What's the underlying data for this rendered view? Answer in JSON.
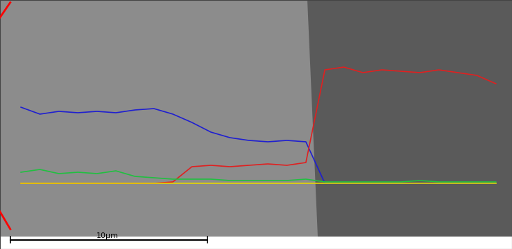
{
  "chart_data": {
    "type": "line",
    "x": [
      0,
      4,
      8,
      12,
      16,
      20,
      24,
      28,
      32,
      36,
      40,
      44,
      48,
      52,
      56,
      60,
      64,
      68,
      72,
      76,
      80,
      84,
      88,
      92,
      96,
      100
    ],
    "series": [
      {
        "color": "#1f1fd0",
        "values": [
          55,
          50,
          52,
          51,
          52,
          51,
          53,
          54,
          50,
          44,
          37,
          33,
          31,
          30,
          31,
          30,
          0,
          0,
          0,
          0,
          0,
          0,
          0,
          0,
          0,
          0
        ]
      },
      {
        "color": "#e02020",
        "values": [
          0,
          0,
          0,
          0,
          0,
          0,
          0,
          0,
          1,
          12,
          13,
          12,
          13,
          14,
          13,
          15,
          82,
          84,
          80,
          82,
          81,
          80,
          82,
          80,
          78,
          72
        ]
      },
      {
        "color": "#20c040",
        "values": [
          8,
          10,
          7,
          8,
          7,
          9,
          5,
          4,
          3,
          3,
          3,
          2,
          2,
          2,
          2,
          3,
          1,
          1,
          1,
          1,
          1,
          2,
          1,
          1,
          1,
          1
        ]
      },
      {
        "color": "#e8d800",
        "values": [
          0,
          0,
          0,
          0,
          0,
          0,
          0,
          0,
          0,
          0,
          0,
          0,
          0,
          0,
          0,
          0,
          0,
          0,
          0,
          0,
          0,
          0,
          0,
          0,
          0,
          0
        ]
      }
    ],
    "xlim": [
      -4.4,
      103.4
    ],
    "ylim": [
      -47.5,
      132.5
    ],
    "xticks": [],
    "yticks": [],
    "tick_labels": false,
    "annotations": [
      "10μm"
    ]
  }
}
